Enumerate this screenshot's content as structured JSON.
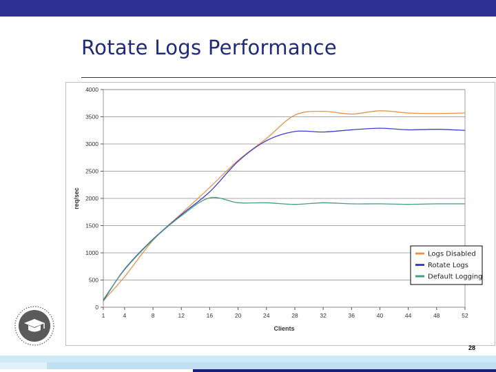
{
  "slide": {
    "title": "Rotate Logs Performance",
    "page_number": "28"
  },
  "colors": {
    "header_bar": "#2e3192",
    "title_text": "#1f2a7a",
    "logs_disabled": "#e8944a",
    "rotate_logs": "#3a3fcf",
    "default_logging": "#4a9a7e"
  },
  "chart_data": {
    "type": "line",
    "xlabel": "Clients",
    "ylabel": "req/sec",
    "x": [
      1,
      4,
      8,
      12,
      16,
      20,
      24,
      28,
      32,
      36,
      40,
      44,
      48,
      52
    ],
    "x_ticks": [
      1,
      4,
      8,
      12,
      16,
      20,
      24,
      28,
      32,
      36,
      40,
      44,
      48,
      52
    ],
    "ylim": [
      0,
      4000
    ],
    "y_ticks": [
      0,
      500,
      1000,
      1500,
      2000,
      2500,
      3000,
      3500,
      4000
    ],
    "grid": true,
    "legend_position": "bottom-right",
    "series": [
      {
        "name": "Logs Disabled",
        "color": "#e8944a",
        "values": [
          120,
          560,
          1230,
          1720,
          2200,
          2700,
          3100,
          3530,
          3600,
          3550,
          3610,
          3570,
          3560,
          3570
        ]
      },
      {
        "name": "Rotate Logs",
        "color": "#3a3fcf",
        "values": [
          120,
          700,
          1250,
          1700,
          2120,
          2680,
          3060,
          3230,
          3220,
          3260,
          3290,
          3260,
          3270,
          3250
        ]
      },
      {
        "name": "Default Logging",
        "color": "#4a9a7e",
        "values": [
          140,
          690,
          1240,
          1680,
          2010,
          1920,
          1920,
          1890,
          1920,
          1900,
          1900,
          1890,
          1900,
          1900
        ]
      }
    ]
  }
}
